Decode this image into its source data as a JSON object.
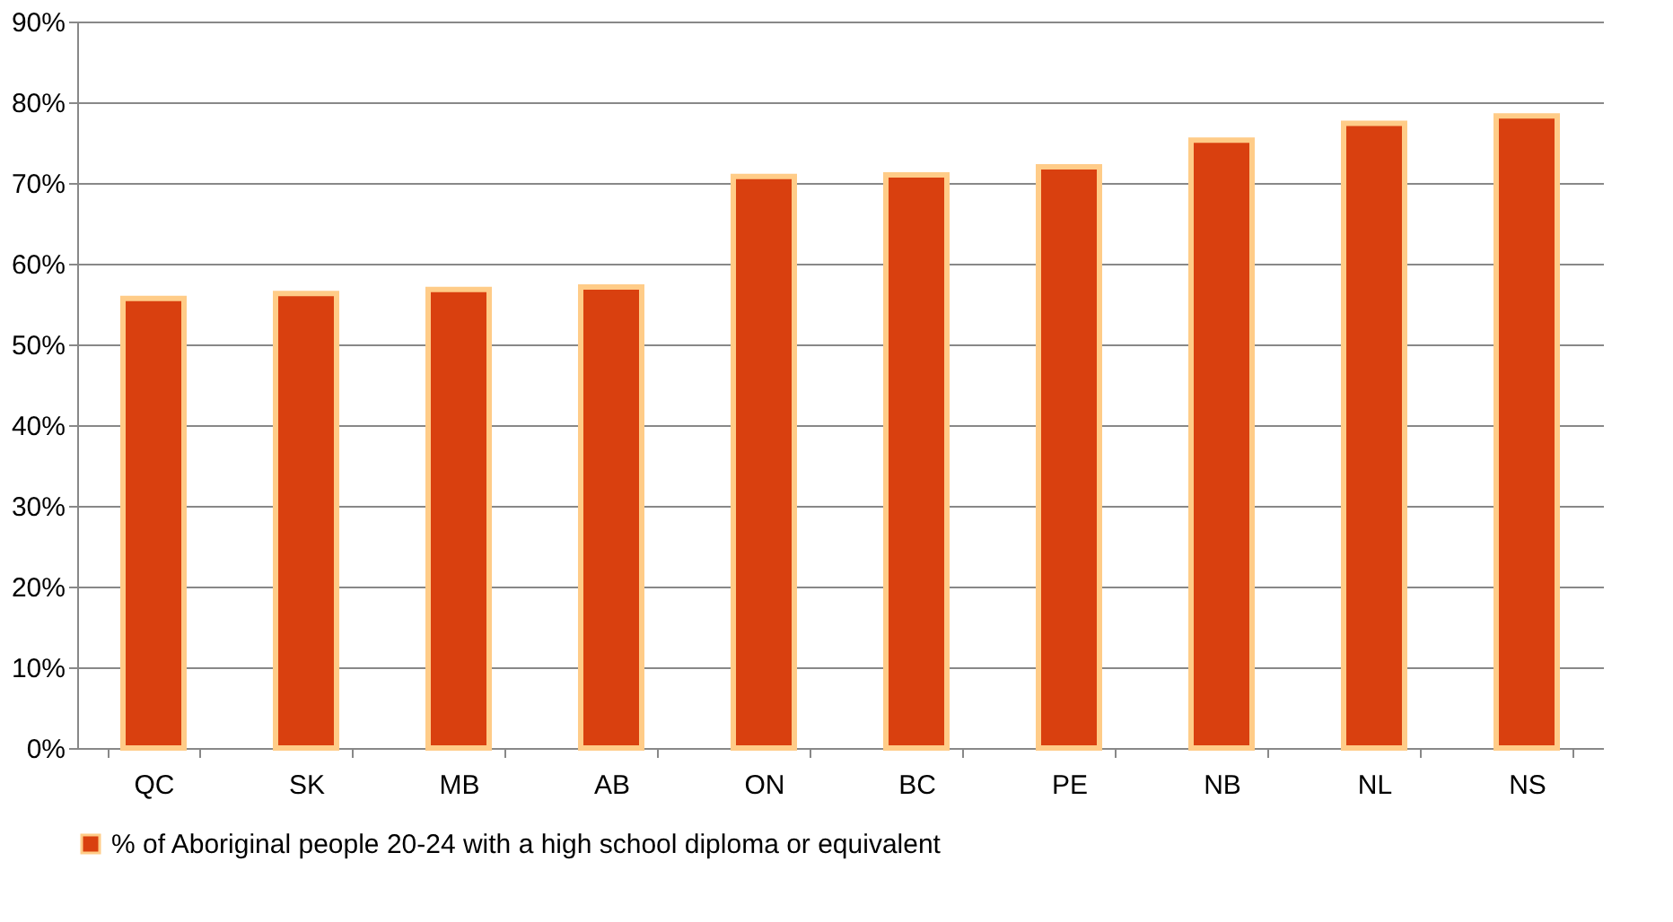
{
  "chart_data": {
    "type": "bar",
    "categories": [
      "QC",
      "SK",
      "MB",
      "AB",
      "ON",
      "BC",
      "PE",
      "NB",
      "NL",
      "NS"
    ],
    "series": [
      {
        "name": "% of Aboriginal people 20-24 with a high school diploma or equivalent",
        "color": "#d9400f",
        "values": [
          55.7,
          56.3,
          56.8,
          57.1,
          70.8,
          71.0,
          72.0,
          75.3,
          77.4,
          78.3
        ]
      }
    ],
    "ylim": [
      0,
      90
    ],
    "yticks": [
      {
        "value": 0,
        "label": "0%"
      },
      {
        "value": 10,
        "label": "10%"
      },
      {
        "value": 20,
        "label": "20%"
      },
      {
        "value": 30,
        "label": "30%"
      },
      {
        "value": 40,
        "label": "40%"
      },
      {
        "value": 50,
        "label": "50%"
      },
      {
        "value": 60,
        "label": "60%"
      },
      {
        "value": 70,
        "label": "70%"
      },
      {
        "value": 80,
        "label": "80%"
      },
      {
        "value": 90,
        "label": "90%"
      }
    ],
    "grid": "y",
    "legend": "bottom"
  }
}
